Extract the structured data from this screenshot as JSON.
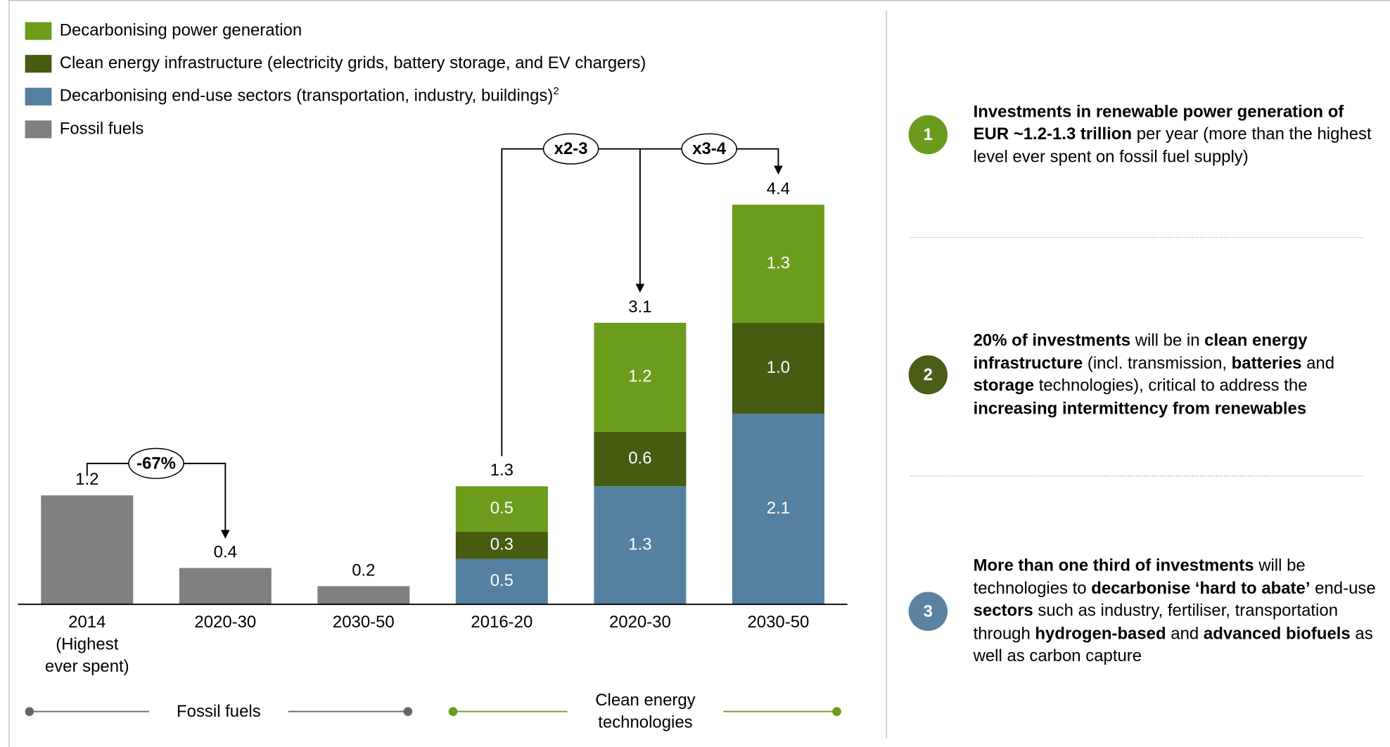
{
  "chart_data": {
    "type": "bar",
    "stacked": true,
    "categories": [
      "2014 (Highest ever spent)",
      "2020-30",
      "2030-50",
      "2016-20",
      "2020-30",
      "2030-50"
    ],
    "series": [
      {
        "name": "Decarbonising power generation",
        "color": "#6c9c1c",
        "values": [
          null,
          null,
          null,
          0.5,
          1.2,
          1.3
        ],
        "value_labels": [
          null,
          null,
          null,
          "0.5",
          "1.2",
          "1.3"
        ]
      },
      {
        "name": "Clean energy infrastructure (electricity grids, battery storage, and EV chargers)",
        "color": "#465c10",
        "values": [
          null,
          null,
          null,
          0.3,
          0.6,
          1.0
        ],
        "value_labels": [
          null,
          null,
          null,
          "0.3",
          "0.6",
          "1.0"
        ]
      },
      {
        "name": "Decarbonising end-use sectors (transportation, industry, buildings)",
        "footnote": "2",
        "color": "#55809f",
        "values": [
          null,
          null,
          null,
          0.5,
          1.3,
          2.1
        ],
        "value_labels": [
          null,
          null,
          null,
          "0.5",
          "1.3",
          "2.1"
        ]
      },
      {
        "name": "Fossil fuels",
        "color": "#808080",
        "values": [
          1.2,
          0.4,
          0.2,
          null,
          null,
          null
        ]
      }
    ],
    "totals": [
      1.2,
      0.4,
      0.2,
      1.3,
      3.1,
      4.4
    ],
    "ylim": [
      0,
      4.4
    ],
    "annotations": [
      "-67%",
      "x2-3",
      "x3-4"
    ],
    "groups": [
      {
        "label": "Fossil fuels",
        "color": "#666666"
      },
      {
        "label": "Clean energy technologies",
        "color": "#6c9c1c"
      }
    ]
  },
  "panel": {
    "items": [
      {
        "number": "1",
        "color": "#6a9b1d",
        "runs": [
          {
            "text": "Investments in renewable power generation of EUR ~1.2-1.3 trillion",
            "bold": true
          },
          {
            "text": " per year (more than the highest level ever spent on fossil fuel supply)",
            "bold": false
          }
        ]
      },
      {
        "number": "2",
        "color": "#4a5e17",
        "runs": [
          {
            "text": "20% of investments",
            "bold": true
          },
          {
            "text": " will be in ",
            "bold": false
          },
          {
            "text": "clean energy infrastructure",
            "bold": true
          },
          {
            "text": " (incl. transmission, ",
            "bold": false
          },
          {
            "text": "batteries",
            "bold": true
          },
          {
            "text": " and ",
            "bold": false
          },
          {
            "text": "storage",
            "bold": true
          },
          {
            "text": " technologies), critical to address the ",
            "bold": false
          },
          {
            "text": "increasing intermittency from renewables",
            "bold": true
          }
        ]
      },
      {
        "number": "3",
        "color": "#5b82a0",
        "runs": [
          {
            "text": "More than one third of investments",
            "bold": true
          },
          {
            "text": " will be technologies to ",
            "bold": false
          },
          {
            "text": "decarbonise ‘hard to abate’",
            "bold": true
          },
          {
            "text": " end-use ",
            "bold": false
          },
          {
            "text": "sectors",
            "bold": true
          },
          {
            "text": " such as industry, fertiliser, transportation through ",
            "bold": false
          },
          {
            "text": "hydrogen-based",
            "bold": true
          },
          {
            "text": " and ",
            "bold": false
          },
          {
            "text": "advanced biofuels",
            "bold": true
          },
          {
            "text": " as well as carbon capture",
            "bold": false
          }
        ]
      }
    ]
  }
}
